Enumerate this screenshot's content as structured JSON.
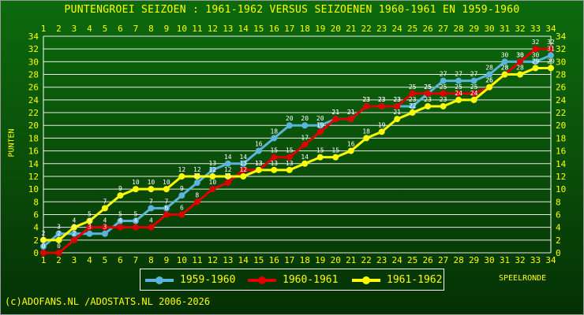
{
  "title": "PUNTENGROEI  SEIZOEN : 1961-1962 VERSUS SEIZOENEN 1960-1961 EN 1959-1960",
  "footer": "(c)ADOFANS.NL /ADOSTATS.NL 2006-2026",
  "colors": {
    "text": "#ffff00",
    "grid": "#ffffff",
    "series_1959": "#5ab4dc",
    "series_1960": "#e00000",
    "series_1961": "#ffff00"
  },
  "chart_data": {
    "type": "line",
    "title": "PUNTENGROEI  SEIZOEN : 1961-1962 VERSUS SEIZOENEN 1960-1961 EN 1959-1960",
    "xlabel": "SPEELRONDE",
    "ylabel": "PUNTEN",
    "xlim": [
      1,
      34
    ],
    "ylim": [
      0,
      34
    ],
    "yticks": [
      0,
      2,
      4,
      6,
      8,
      10,
      12,
      14,
      16,
      18,
      20,
      22,
      24,
      26,
      28,
      30,
      32,
      34
    ],
    "grid": true,
    "legend_position": "bottom",
    "x": [
      1,
      2,
      3,
      4,
      5,
      6,
      7,
      8,
      9,
      10,
      11,
      12,
      13,
      14,
      15,
      16,
      17,
      18,
      19,
      20,
      21,
      22,
      23,
      24,
      25,
      26,
      27,
      28,
      29,
      30,
      31,
      32,
      33,
      34
    ],
    "series": [
      {
        "name": "1959-1960",
        "color": "#5ab4dc",
        "values": [
          1,
          3,
          3,
          3,
          3,
          5,
          5,
          7,
          7,
          9,
          11,
          13,
          14,
          14,
          16,
          18,
          20,
          20,
          20,
          21,
          21,
          23,
          23,
          23,
          23,
          25,
          27,
          27,
          27,
          28,
          30,
          30,
          30,
          31
        ]
      },
      {
        "name": "1960-1961",
        "color": "#e00000",
        "values": [
          0,
          0,
          2,
          4,
          4,
          4,
          4,
          4,
          6,
          6,
          8,
          10,
          11,
          13,
          13,
          15,
          15,
          17,
          19,
          21,
          21,
          23,
          23,
          23,
          25,
          25,
          25,
          25,
          25,
          26,
          28,
          30,
          32,
          32
        ]
      },
      {
        "name": "1961-1962",
        "color": "#ffff00",
        "values": [
          2,
          2,
          4,
          5,
          7,
          9,
          10,
          10,
          10,
          12,
          12,
          12,
          12,
          12,
          13,
          13,
          13,
          14,
          15,
          15,
          16,
          18,
          19,
          21,
          22,
          23,
          23,
          24,
          24,
          26,
          28,
          28,
          29,
          29
        ]
      }
    ]
  }
}
